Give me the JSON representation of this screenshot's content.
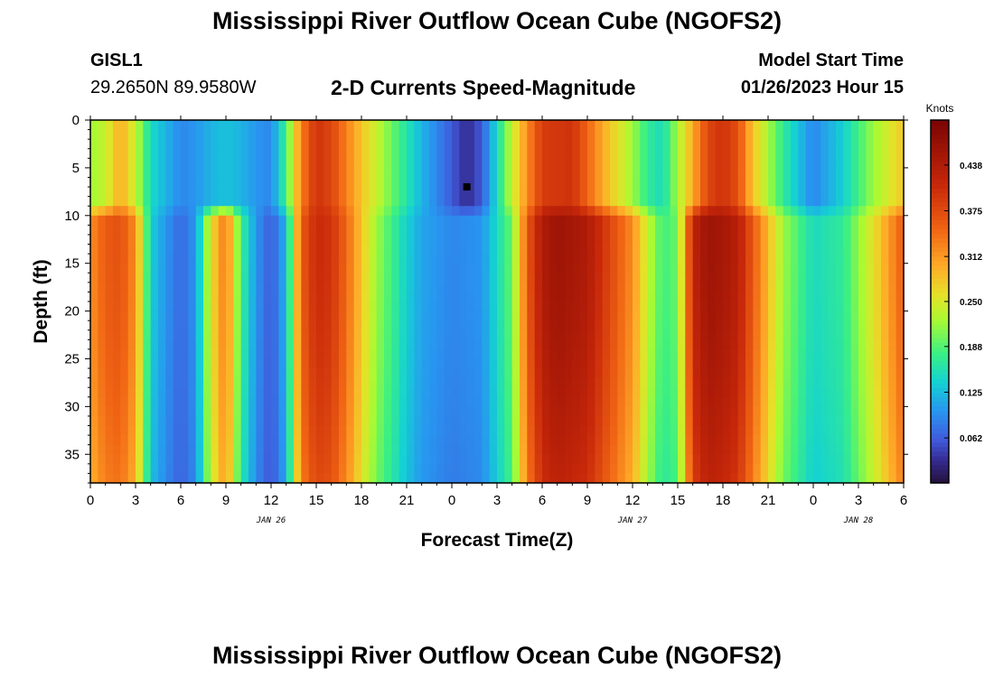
{
  "header": {
    "title": "Mississippi River Outflow Ocean Cube (NGOFS2)",
    "station_id": "GISL1",
    "station_coords": "29.2650N  89.9580W",
    "plot_subtitle": "2-D Currents Speed-Magnitude",
    "model_start_label": "Model Start Time",
    "model_start_value": "01/26/2023 Hour 15"
  },
  "footer": {
    "title_repeat": "Mississippi River Outflow Ocean Cube (NGOFS2)"
  },
  "chart_data": {
    "type": "heatmap",
    "title": "2-D Currents Speed-Magnitude",
    "xlabel": "Forecast Time(Z)",
    "ylabel": "Depth (ft)",
    "x_start_hour_abs": 0,
    "x_end_hour_abs": 54,
    "x_ticks": [
      {
        "h": 0,
        "label": "0"
      },
      {
        "h": 3,
        "label": "3"
      },
      {
        "h": 6,
        "label": "6"
      },
      {
        "h": 9,
        "label": "9"
      },
      {
        "h": 12,
        "label": "12"
      },
      {
        "h": 15,
        "label": "15"
      },
      {
        "h": 18,
        "label": "18"
      },
      {
        "h": 21,
        "label": "21"
      },
      {
        "h": 24,
        "label": "0"
      },
      {
        "h": 27,
        "label": "3"
      },
      {
        "h": 30,
        "label": "6"
      },
      {
        "h": 33,
        "label": "9"
      },
      {
        "h": 36,
        "label": "12"
      },
      {
        "h": 39,
        "label": "15"
      },
      {
        "h": 42,
        "label": "18"
      },
      {
        "h": 45,
        "label": "21"
      },
      {
        "h": 48,
        "label": "0"
      },
      {
        "h": 51,
        "label": "3"
      },
      {
        "h": 54,
        "label": "6"
      }
    ],
    "date_labels": [
      {
        "h": 12,
        "label": "JAN 26"
      },
      {
        "h": 36,
        "label": "JAN 27"
      },
      {
        "h": 51,
        "label": "JAN 28"
      }
    ],
    "y_range": [
      0,
      38
    ],
    "y_ticks": [
      0,
      5,
      10,
      15,
      20,
      25,
      30,
      35
    ],
    "colorbar": {
      "unit": "Knots",
      "range": [
        0.0,
        0.5
      ],
      "ticks": [
        "0.062",
        "0.125",
        "0.188",
        "0.250",
        "0.312",
        "0.375",
        "0.438"
      ]
    },
    "marker": {
      "hour": 25,
      "depth": 7
    },
    "upper_layer": {
      "depth_range": [
        0,
        9
      ],
      "profile": [
        [
          0,
          0.22
        ],
        [
          1,
          0.24
        ],
        [
          2,
          0.3
        ],
        [
          3,
          0.24
        ],
        [
          4,
          0.15
        ],
        [
          5,
          0.12
        ],
        [
          6,
          0.09
        ],
        [
          7,
          0.1
        ],
        [
          8,
          0.12
        ],
        [
          9,
          0.13
        ],
        [
          10,
          0.12
        ],
        [
          11,
          0.1
        ],
        [
          12,
          0.09
        ],
        [
          13,
          0.18
        ],
        [
          14,
          0.33
        ],
        [
          15,
          0.4
        ],
        [
          16,
          0.38
        ],
        [
          18,
          0.28
        ],
        [
          20,
          0.2
        ],
        [
          22,
          0.12
        ],
        [
          24,
          0.06
        ],
        [
          25,
          0.03
        ],
        [
          26,
          0.06
        ],
        [
          27,
          0.15
        ],
        [
          28,
          0.24
        ],
        [
          29,
          0.32
        ],
        [
          30,
          0.39
        ],
        [
          32,
          0.4
        ],
        [
          34,
          0.3
        ],
        [
          36,
          0.22
        ],
        [
          37,
          0.17
        ],
        [
          38,
          0.15
        ],
        [
          40,
          0.3
        ],
        [
          41,
          0.38
        ],
        [
          42,
          0.4
        ],
        [
          43,
          0.37
        ],
        [
          44,
          0.28
        ],
        [
          46,
          0.17
        ],
        [
          48,
          0.09
        ],
        [
          50,
          0.14
        ],
        [
          52,
          0.22
        ],
        [
          54,
          0.28
        ]
      ]
    },
    "lower_layer": {
      "depth_range": [
        10,
        38
      ],
      "profile": [
        [
          0,
          0.32
        ],
        [
          1,
          0.36
        ],
        [
          2,
          0.37
        ],
        [
          3,
          0.32
        ],
        [
          4,
          0.14
        ],
        [
          5,
          0.1
        ],
        [
          6,
          0.07
        ],
        [
          7,
          0.1
        ],
        [
          8,
          0.26
        ],
        [
          9,
          0.34
        ],
        [
          10,
          0.18
        ],
        [
          11,
          0.1
        ],
        [
          12,
          0.06
        ],
        [
          13,
          0.12
        ],
        [
          14,
          0.36
        ],
        [
          15,
          0.41
        ],
        [
          16,
          0.4
        ],
        [
          17,
          0.35
        ],
        [
          18,
          0.28
        ],
        [
          19,
          0.22
        ],
        [
          20,
          0.18
        ],
        [
          21,
          0.14
        ],
        [
          22,
          0.11
        ],
        [
          24,
          0.09
        ],
        [
          26,
          0.1
        ],
        [
          28,
          0.2
        ],
        [
          29,
          0.36
        ],
        [
          30,
          0.44
        ],
        [
          31,
          0.46
        ],
        [
          32,
          0.45
        ],
        [
          33,
          0.44
        ],
        [
          34,
          0.4
        ],
        [
          36,
          0.32
        ],
        [
          37,
          0.24
        ],
        [
          38,
          0.18
        ],
        [
          39,
          0.2
        ],
        [
          40,
          0.42
        ],
        [
          41,
          0.46
        ],
        [
          42,
          0.45
        ],
        [
          43,
          0.43
        ],
        [
          44,
          0.36
        ],
        [
          46,
          0.22
        ],
        [
          48,
          0.15
        ],
        [
          50,
          0.17
        ],
        [
          52,
          0.26
        ],
        [
          54,
          0.36
        ]
      ]
    }
  }
}
